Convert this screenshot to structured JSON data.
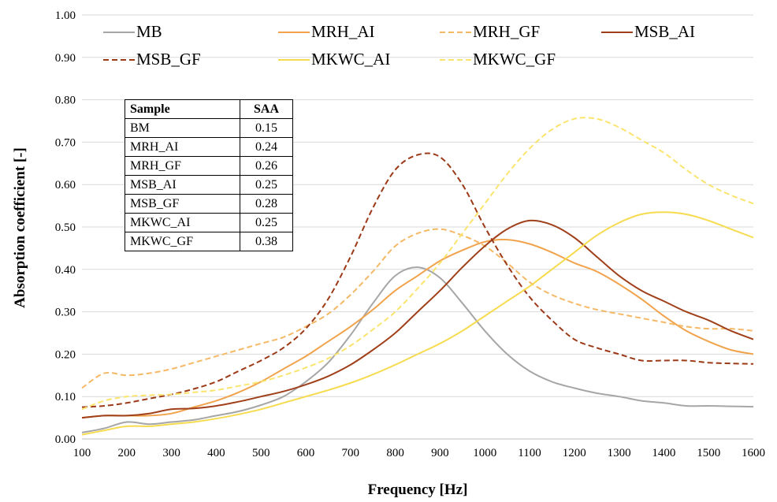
{
  "chart_data": {
    "type": "line",
    "xlabel": "Frequency [Hz]",
    "ylabel": "Absorption coefficient [-]",
    "xlim": [
      100,
      1600
    ],
    "ylim": [
      0,
      1.0
    ],
    "xticks": [
      "100",
      "200",
      "300",
      "400",
      "500",
      "600",
      "700",
      "800",
      "900",
      "1000",
      "1100",
      "1200",
      "1300",
      "1400",
      "1500",
      "1600"
    ],
    "yticks": [
      "0.00",
      "0.10",
      "0.20",
      "0.30",
      "0.40",
      "0.50",
      "0.60",
      "0.70",
      "0.80",
      "0.90",
      "1.00"
    ],
    "grid": "horizontal",
    "legend": "top",
    "x": [
      100,
      150,
      200,
      250,
      300,
      350,
      400,
      450,
      500,
      550,
      600,
      650,
      700,
      750,
      800,
      850,
      900,
      950,
      1000,
      1050,
      1100,
      1150,
      1200,
      1250,
      1300,
      1350,
      1400,
      1450,
      1500,
      1550,
      1600
    ],
    "series": [
      {
        "name": "MB",
        "color": "#a6a6a6",
        "dash": "solid",
        "values": [
          0.015,
          0.025,
          0.04,
          0.035,
          0.04,
          0.045,
          0.055,
          0.065,
          0.08,
          0.1,
          0.135,
          0.18,
          0.245,
          0.32,
          0.385,
          0.405,
          0.38,
          0.32,
          0.255,
          0.2,
          0.16,
          0.135,
          0.12,
          0.108,
          0.1,
          0.09,
          0.085,
          0.078,
          0.078,
          0.077,
          0.076
        ]
      },
      {
        "name": "MRH_AI",
        "color": "#f0a34b",
        "dash": "solid",
        "values": [
          0.05,
          0.055,
          0.055,
          0.055,
          0.06,
          0.075,
          0.09,
          0.11,
          0.135,
          0.165,
          0.195,
          0.23,
          0.265,
          0.305,
          0.35,
          0.385,
          0.42,
          0.445,
          0.465,
          0.47,
          0.46,
          0.44,
          0.415,
          0.395,
          0.365,
          0.33,
          0.29,
          0.255,
          0.23,
          0.21,
          0.2
        ]
      },
      {
        "name": "MRH_GF",
        "color": "#f5b865",
        "dash": "dashed",
        "values": [
          0.12,
          0.155,
          0.15,
          0.155,
          0.165,
          0.18,
          0.195,
          0.21,
          0.225,
          0.24,
          0.265,
          0.295,
          0.34,
          0.395,
          0.455,
          0.485,
          0.495,
          0.48,
          0.455,
          0.415,
          0.37,
          0.34,
          0.32,
          0.305,
          0.295,
          0.285,
          0.275,
          0.265,
          0.26,
          0.26,
          0.255
        ]
      },
      {
        "name": "MSB_AI",
        "color": "#a0401b",
        "dash": "solid",
        "values": [
          0.05,
          0.055,
          0.055,
          0.06,
          0.07,
          0.072,
          0.078,
          0.088,
          0.1,
          0.112,
          0.128,
          0.148,
          0.175,
          0.21,
          0.25,
          0.3,
          0.35,
          0.405,
          0.455,
          0.495,
          0.515,
          0.505,
          0.475,
          0.43,
          0.385,
          0.35,
          0.325,
          0.3,
          0.28,
          0.255,
          0.235
        ]
      },
      {
        "name": "MSB_GF",
        "color": "#9c3a17",
        "dash": "dashed",
        "values": [
          0.075,
          0.078,
          0.085,
          0.095,
          0.105,
          0.118,
          0.135,
          0.16,
          0.185,
          0.215,
          0.26,
          0.33,
          0.43,
          0.545,
          0.635,
          0.67,
          0.665,
          0.6,
          0.5,
          0.41,
          0.335,
          0.28,
          0.235,
          0.215,
          0.2,
          0.185,
          0.185,
          0.185,
          0.18,
          0.178,
          0.177
        ]
      },
      {
        "name": "MKWC_AI",
        "color": "#f7db4f",
        "dash": "solid",
        "values": [
          0.01,
          0.02,
          0.03,
          0.03,
          0.035,
          0.04,
          0.048,
          0.058,
          0.07,
          0.085,
          0.1,
          0.115,
          0.132,
          0.152,
          0.175,
          0.2,
          0.225,
          0.255,
          0.29,
          0.325,
          0.36,
          0.4,
          0.44,
          0.48,
          0.51,
          0.53,
          0.535,
          0.53,
          0.515,
          0.495,
          0.475
        ]
      },
      {
        "name": "MKWC_GF",
        "color": "#fbe46e",
        "dash": "dashed",
        "values": [
          0.07,
          0.09,
          0.1,
          0.103,
          0.105,
          0.11,
          0.115,
          0.125,
          0.135,
          0.15,
          0.168,
          0.19,
          0.22,
          0.258,
          0.3,
          0.355,
          0.415,
          0.485,
          0.555,
          0.625,
          0.685,
          0.73,
          0.755,
          0.755,
          0.735,
          0.705,
          0.675,
          0.635,
          0.6,
          0.575,
          0.555
        ]
      }
    ]
  },
  "table": {
    "headers": [
      "Sample",
      "SAA"
    ],
    "rows": [
      [
        "BM",
        "0.15"
      ],
      [
        "MRH_AI",
        "0.24"
      ],
      [
        "MRH_GF",
        "0.26"
      ],
      [
        "MSB_AI",
        "0.25"
      ],
      [
        "MSB_GF",
        "0.28"
      ],
      [
        "MKWC_AI",
        "0.25"
      ],
      [
        "MKWC_GF",
        "0.38"
      ]
    ]
  }
}
